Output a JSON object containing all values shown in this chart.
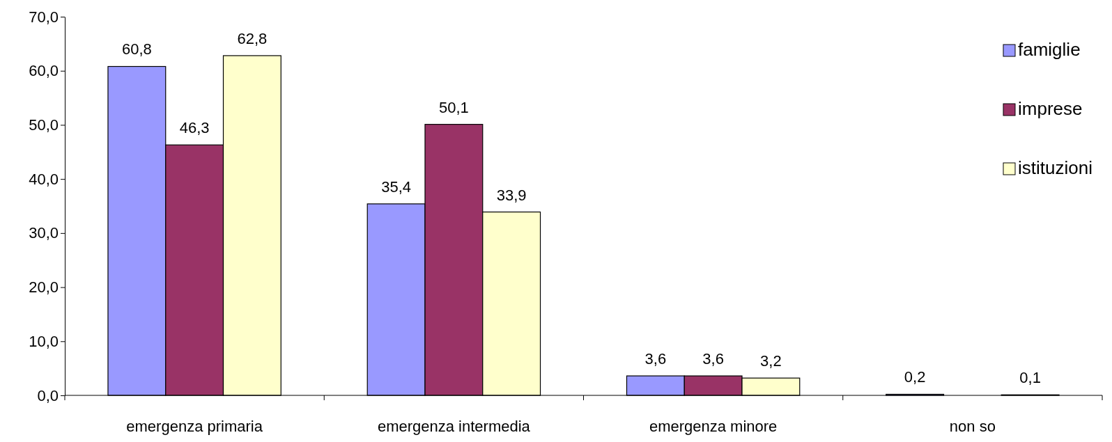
{
  "chart_data": {
    "type": "bar",
    "categories": [
      "emergenza primaria",
      "emergenza intermedia",
      "emergenza minore",
      "non so"
    ],
    "series": [
      {
        "name": "famiglie",
        "color": "#9999ff",
        "values": [
          60.8,
          35.4,
          3.6,
          0.2
        ],
        "value_labels": [
          "60,8",
          "35,4",
          "3,6",
          "0,2"
        ]
      },
      {
        "name": "imprese",
        "color": "#993366",
        "values": [
          46.3,
          50.1,
          3.6,
          null
        ],
        "value_labels": [
          "46,3",
          "50,1",
          "3,6",
          null
        ]
      },
      {
        "name": "istituzioni",
        "color": "#ffffcc",
        "values": [
          62.8,
          33.9,
          3.2,
          0.1
        ],
        "value_labels": [
          "62,8",
          "33,9",
          "3,2",
          "0,1"
        ]
      }
    ],
    "ylim": [
      0,
      70
    ],
    "yticks": [
      {
        "value": 0,
        "label": "0,0"
      },
      {
        "value": 10,
        "label": "10,0"
      },
      {
        "value": 20,
        "label": "20,0"
      },
      {
        "value": 30,
        "label": "30,0"
      },
      {
        "value": 40,
        "label": "40,0"
      },
      {
        "value": 50,
        "label": "50,0"
      },
      {
        "value": 60,
        "label": "60,0"
      },
      {
        "value": 70,
        "label": "70,0"
      }
    ],
    "legend": "top right",
    "grid": false
  }
}
